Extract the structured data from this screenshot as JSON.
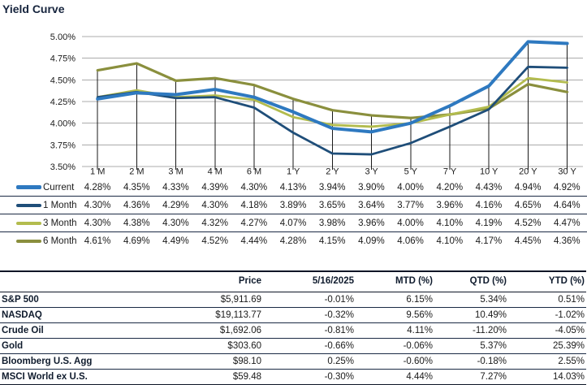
{
  "colors": {
    "title_text": "#16243d",
    "gridline": "#ababab",
    "axis_text": "#1a1a1a",
    "drop_line": "#1a1a1a",
    "table_border_thick": "#0d1526",
    "table_border_thin": "#1b2a44",
    "series_current": "#2e79c0",
    "series_1_month": "#1f4e79",
    "series_3_month": "#b3bc4e",
    "series_6_month": "#8a8f3d"
  },
  "chart_data": {
    "type": "line",
    "title": "Yield Curve",
    "categories": [
      "1 M",
      "2 M",
      "3 M",
      "4 M",
      "6 M",
      "1 Y",
      "2 Y",
      "3 Y",
      "5 Y",
      "7 Y",
      "10 Y",
      "20 Y",
      "30 Y"
    ],
    "y_ticks": [
      "5.00%",
      "4.75%",
      "4.50%",
      "4.25%",
      "4.00%",
      "3.75%",
      "3.50%"
    ],
    "ylim": [
      3.5,
      5.0
    ],
    "grid": "horizontal gridlines on, vertical drop lines from top-most series to axis",
    "legend_position": "table below chart with per-point values",
    "series": [
      {
        "name": "Current",
        "color": "#2e79c0",
        "values": [
          4.28,
          4.35,
          4.33,
          4.39,
          4.3,
          4.13,
          3.94,
          3.9,
          4.0,
          4.2,
          4.43,
          4.94,
          4.92
        ]
      },
      {
        "name": "1 Month",
        "color": "#1f4e79",
        "values": [
          4.3,
          4.36,
          4.29,
          4.3,
          4.18,
          3.89,
          3.65,
          3.64,
          3.77,
          3.96,
          4.16,
          4.65,
          4.64
        ]
      },
      {
        "name": "3 Month",
        "color": "#b3bc4e",
        "values": [
          4.3,
          4.38,
          4.3,
          4.32,
          4.27,
          4.07,
          3.98,
          3.96,
          4.0,
          4.1,
          4.19,
          4.52,
          4.47
        ]
      },
      {
        "name": "6 Month",
        "color": "#8a8f3d",
        "values": [
          4.61,
          4.69,
          4.49,
          4.52,
          4.44,
          4.28,
          4.15,
          4.09,
          4.06,
          4.1,
          4.17,
          4.45,
          4.36
        ]
      }
    ]
  },
  "market_table": {
    "headers": [
      "",
      "Price",
      "5/16/2025",
      "MTD (%)",
      "QTD (%)",
      "YTD (%)"
    ],
    "rows": [
      [
        "S&P 500",
        "$5,911.69",
        "-0.01%",
        "6.15%",
        "5.34%",
        "0.51%"
      ],
      [
        "NASDAQ",
        "$19,113.77",
        "-0.32%",
        "9.56%",
        "10.49%",
        "-1.02%"
      ],
      [
        "Crude Oil",
        "$1,692.06",
        "-0.81%",
        "4.11%",
        "-11.20%",
        "-4.05%"
      ],
      [
        "Gold",
        "$303.60",
        "-0.66%",
        "-0.06%",
        "5.37%",
        "25.39%"
      ],
      [
        "Bloomberg U.S. Agg",
        "$98.10",
        "0.25%",
        "-0.60%",
        "-0.18%",
        "2.55%"
      ],
      [
        "MSCI World ex U.S.",
        "$59.48",
        "-0.30%",
        "4.44%",
        "7.27%",
        "14.03%"
      ]
    ]
  }
}
